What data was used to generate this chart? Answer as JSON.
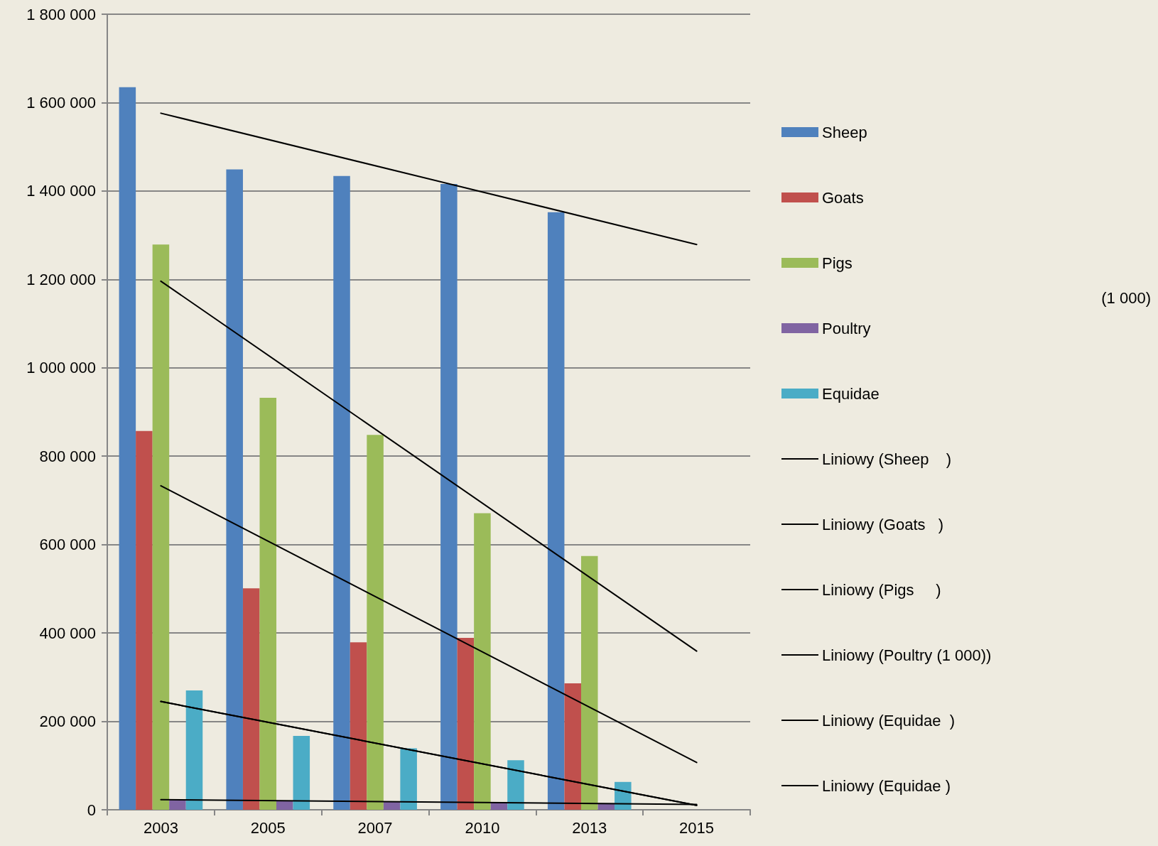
{
  "chart_data": {
    "type": "bar",
    "categories": [
      "2003",
      "2005",
      "2007",
      "2010",
      "2013",
      "2015"
    ],
    "series": [
      {
        "name": "Sheep",
        "color": "#4f81bd",
        "values": [
          1635000,
          1449000,
          1434000,
          1416000,
          1352000,
          null
        ]
      },
      {
        "name": "Goats",
        "color": "#c0504d",
        "values": [
          857000,
          501000,
          379000,
          389000,
          286000,
          null
        ]
      },
      {
        "name": "Pigs",
        "color": "#9bbb59",
        "values": [
          1279000,
          932000,
          848000,
          671000,
          574000,
          null
        ]
      },
      {
        "name": "Poultry",
        "color": "#8064a2",
        "values": [
          22000,
          20000,
          18000,
          17000,
          15000,
          null
        ]
      },
      {
        "name": "Equidae",
        "color": "#4bacc6",
        "values": [
          270000,
          167000,
          139000,
          112000,
          63000,
          null
        ]
      },
      {
        "name": "Liniowy (Sheep    )",
        "type": "line",
        "color": "#000000",
        "values": [
          1576000,
          null,
          null,
          null,
          null,
          1279000
        ]
      },
      {
        "name": "Liniowy (Goats   )",
        "type": "line",
        "color": "#000000",
        "values": [
          733000,
          null,
          null,
          null,
          null,
          107000
        ]
      },
      {
        "name": "Liniowy (Pigs     )",
        "type": "line",
        "color": "#000000",
        "values": [
          1196000,
          null,
          null,
          null,
          null,
          359000
        ]
      },
      {
        "name": "Liniowy (Poultry (1 000))",
        "type": "line",
        "color": "#000000",
        "values": [
          23000,
          null,
          null,
          null,
          null,
          12000
        ]
      },
      {
        "name": "Liniowy (Equidae  )",
        "type": "line",
        "color": "#000000",
        "values": [
          245000,
          null,
          null,
          null,
          null,
          10000
        ]
      },
      {
        "name": "Liniowy (Equidae )",
        "type": "line",
        "color": "#000000",
        "values": [
          245000,
          null,
          null,
          null,
          null,
          10000
        ]
      }
    ],
    "ylim": [
      0,
      1800000
    ],
    "yticks": [
      {
        "value": 0,
        "label": "0"
      },
      {
        "value": 200000,
        "label": "200 000"
      },
      {
        "value": 400000,
        "label": "400 000"
      },
      {
        "value": 600000,
        "label": "600 000"
      },
      {
        "value": 800000,
        "label": "800 000"
      },
      {
        "value": 1000000,
        "label": "1 000 000"
      },
      {
        "value": 1200000,
        "label": "1 200 000"
      },
      {
        "value": 1400000,
        "label": "1 400 000"
      },
      {
        "value": 1600000,
        "label": "1 600 000"
      },
      {
        "value": 1800000,
        "label": "1 800 000"
      }
    ],
    "grid": "y",
    "legend": "right",
    "line_style": "solid",
    "marker": "none",
    "annotations": [
      "(1 000)"
    ]
  }
}
